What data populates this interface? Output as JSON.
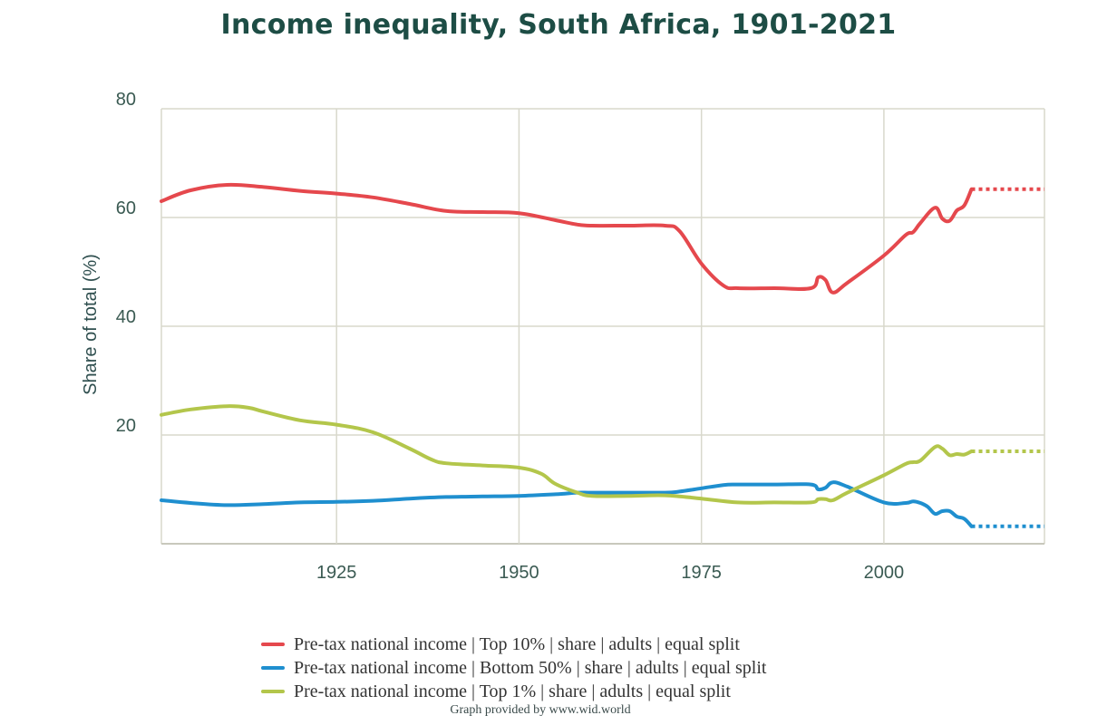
{
  "chart_data": {
    "type": "line",
    "title": "Income inequality, South Africa, 1901-2021",
    "xlabel": "",
    "ylabel": "Share of total (%)",
    "xlim": [
      1901,
      2022
    ],
    "ylim": [
      0,
      80
    ],
    "xticks": [
      1925,
      1950,
      1975,
      2000
    ],
    "yticks": [
      20,
      40,
      60,
      80
    ],
    "grid": true,
    "legend_position": "bottom",
    "credit": "Graph provided by www.wid.world",
    "projection_note": "dotted segment after 2012",
    "series": [
      {
        "name": "Pre-tax national income | Top 10% | share | adults | equal split",
        "color": "#e5484d",
        "x": [
          1901,
          1905,
          1910,
          1915,
          1920,
          1925,
          1930,
          1935,
          1940,
          1945,
          1950,
          1955,
          1958,
          1960,
          1965,
          1970,
          1972,
          1975,
          1978,
          1980,
          1985,
          1990,
          1991,
          1992,
          1993,
          1995,
          2000,
          2003,
          2004,
          2005,
          2007,
          2008,
          2009,
          2010,
          2011,
          2012
        ],
        "values": [
          63,
          65,
          66,
          65.6,
          64.9,
          64.4,
          63.7,
          62.5,
          61.2,
          61.0,
          60.8,
          59.5,
          58.7,
          58.5,
          58.5,
          58.5,
          57.5,
          51.5,
          47.5,
          47.0,
          47.0,
          47.0,
          49.0,
          48.5,
          46.2,
          48,
          53,
          56.8,
          57.3,
          59,
          61.8,
          59.8,
          59.4,
          61.3,
          62.2,
          65.2
        ],
        "projection": {
          "x": [
            2012,
            2022
          ],
          "values": [
            65.2,
            65.2
          ]
        }
      },
      {
        "name": "Pre-tax national income | Bottom 50% | share | adults | equal split",
        "color": "#1f8fcf",
        "x": [
          1901,
          1905,
          1910,
          1915,
          1920,
          1925,
          1930,
          1935,
          1940,
          1945,
          1950,
          1955,
          1958,
          1960,
          1965,
          1970,
          1972,
          1975,
          1978,
          1980,
          1985,
          1990,
          1991,
          1992,
          1993,
          1995,
          2000,
          2003,
          2004,
          2005,
          2006,
          2007,
          2008,
          2009,
          2010,
          2011,
          2012
        ],
        "values": [
          8,
          7.5,
          7.1,
          7.3,
          7.6,
          7.7,
          7.9,
          8.3,
          8.6,
          8.7,
          8.8,
          9.1,
          9.4,
          9.4,
          9.4,
          9.4,
          9.6,
          10.2,
          10.8,
          10.9,
          10.9,
          10.9,
          10.0,
          10.3,
          11.3,
          10.5,
          7.6,
          7.5,
          7.8,
          7.5,
          6.8,
          5.5,
          6.0,
          6.0,
          5.0,
          4.6,
          3.2
        ],
        "projection": {
          "x": [
            2012,
            2022
          ],
          "values": [
            3.2,
            3.2
          ]
        }
      },
      {
        "name": "Pre-tax national income | Top 1% | share | adults | equal split",
        "color": "#b3c64b",
        "x": [
          1901,
          1905,
          1910,
          1913,
          1915,
          1920,
          1925,
          1930,
          1935,
          1938,
          1940,
          1945,
          1950,
          1953,
          1955,
          1958,
          1960,
          1965,
          1970,
          1975,
          1980,
          1985,
          1990,
          1991,
          1992,
          1993,
          1995,
          2000,
          2003,
          2004,
          2005,
          2007,
          2008,
          2009,
          2010,
          2011,
          2012
        ],
        "values": [
          23.7,
          24.7,
          25.3,
          25.0,
          24.3,
          22.7,
          21.9,
          20.5,
          17.5,
          15.5,
          14.8,
          14.4,
          14.0,
          12.9,
          11.0,
          9.4,
          8.8,
          8.8,
          8.9,
          8.3,
          7.6,
          7.6,
          7.6,
          8.2,
          8.2,
          8.0,
          9.4,
          12.6,
          14.7,
          15.0,
          15.3,
          17.8,
          17.5,
          16.3,
          16.5,
          16.4,
          17.0
        ],
        "projection": {
          "x": [
            2012,
            2022
          ],
          "values": [
            17.0,
            17.0
          ]
        }
      }
    ]
  }
}
